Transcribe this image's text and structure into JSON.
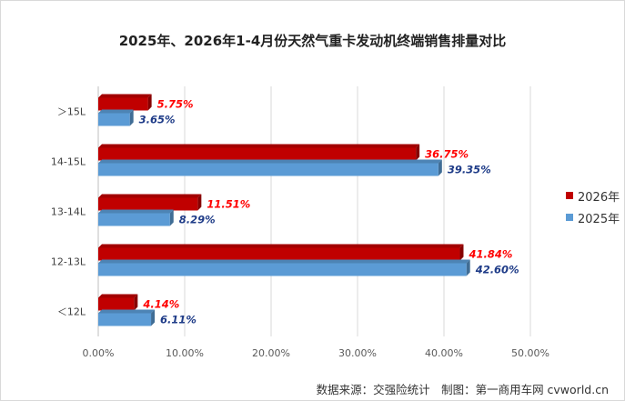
{
  "chart_data": {
    "type": "bar",
    "orientation": "horizontal",
    "title": "2025年、2026年1-4月份天然气重卡发动机终端销售排量对比",
    "categories": [
      "＞15L",
      "14-15L",
      "13-14L",
      "12-13L",
      "＜12L"
    ],
    "series": [
      {
        "name": "2026年",
        "color": "#c00000",
        "values": [
          5.75,
          36.75,
          11.51,
          41.84,
          4.14
        ],
        "labels": [
          "5.75%",
          "36.75%",
          "11.51%",
          "41.84%",
          "4.14%"
        ]
      },
      {
        "name": "2025年",
        "color": "#5b9bd5",
        "values": [
          3.65,
          39.35,
          8.29,
          42.6,
          6.11
        ],
        "labels": [
          "3.65%",
          "39.35%",
          "8.29%",
          "42.60%",
          "6.11%"
        ]
      }
    ],
    "x_ticks": [
      "0.00%",
      "10.00%",
      "20.00%",
      "30.00%",
      "40.00%",
      "50.00%"
    ],
    "xlim": [
      0,
      50
    ],
    "grid": true,
    "legend_position": "right"
  },
  "source": "数据来源：交强险统计　制图：第一商用车网 cvworld.cn"
}
